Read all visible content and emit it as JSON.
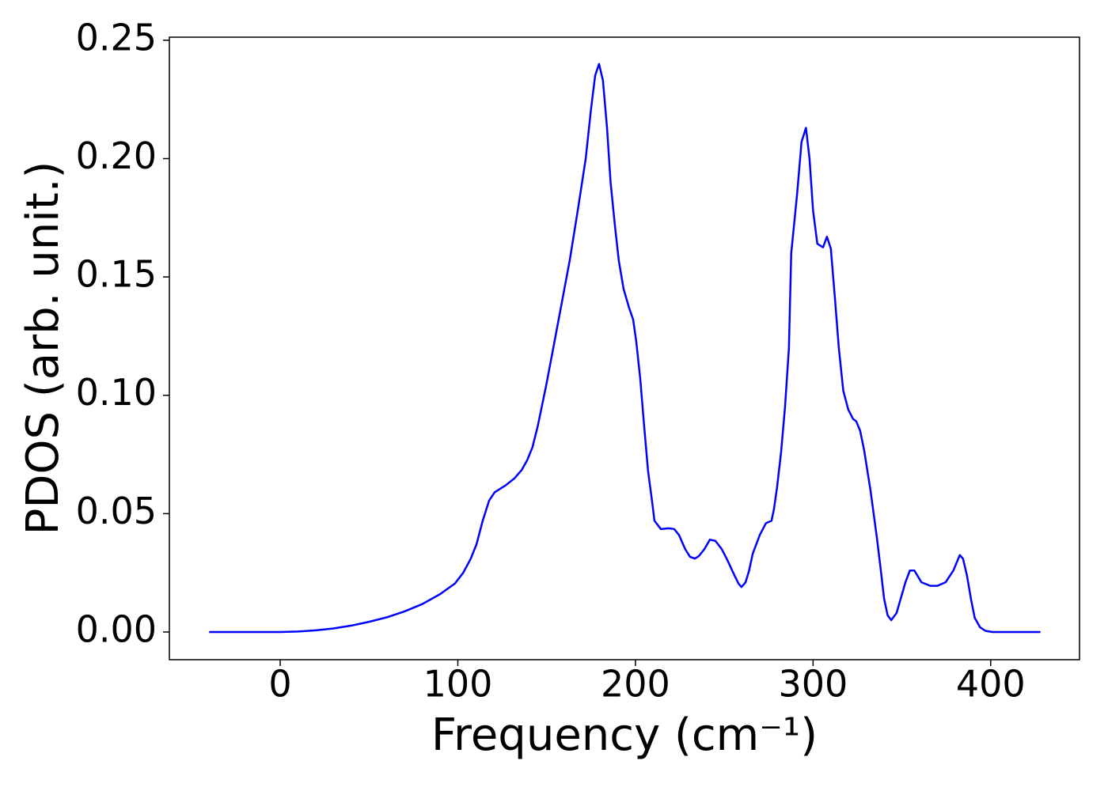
{
  "chart_data": {
    "type": "line",
    "xlabel": "Frequency (cm⁻¹)",
    "ylabel": "PDOS (arb. unit.)",
    "xlim": [
      -62.4,
      450
    ],
    "ylim": [
      -0.0117,
      0.2513
    ],
    "xticks": [
      0,
      100,
      200,
      300,
      400
    ],
    "yticks": [
      {
        "value": 0,
        "label": "0.00"
      },
      {
        "value": 0.05,
        "label": "0.05"
      },
      {
        "value": 0.1,
        "label": "0.10"
      },
      {
        "value": 0.15,
        "label": "0.15"
      },
      {
        "value": 0.2,
        "label": "0.20"
      },
      {
        "value": 0.25,
        "label": "0.25"
      }
    ],
    "grid": false,
    "series": [
      {
        "color": "#0000ff",
        "x": [
          -40,
          0,
          10,
          20,
          30,
          40,
          50,
          60,
          70,
          80,
          90,
          98.4,
          103,
          107.3,
          110.5,
          114,
          117.6,
          120.7,
          127,
          132,
          136,
          139,
          142,
          145,
          149.7,
          154,
          163,
          167.5,
          172,
          175,
          177.3,
          179.5,
          181.7,
          184,
          186,
          188.4,
          190.6,
          193.3,
          196.4,
          198.7,
          200.4,
          202.7,
          204.9,
          207.1,
          209.4,
          210.7,
          214.3,
          218.7,
          221.8,
          224.5,
          228,
          230.7,
          233.4,
          235.6,
          238.8,
          241.9,
          245,
          248.6,
          252,
          255.7,
          258,
          259.7,
          262,
          264,
          266,
          270,
          273.5,
          276.6,
          278,
          279.7,
          282,
          284.2,
          286.4,
          287.7,
          291,
          293.5,
          296,
          298,
          300,
          302.4,
          305.6,
          307.8,
          310,
          312.2,
          314.5,
          317,
          319.8,
          322.5,
          324.3,
          326.5,
          328.7,
          332.3,
          335.9,
          338,
          340,
          342,
          344,
          347,
          352,
          354.5,
          357,
          361,
          366,
          370,
          374.6,
          379,
          382.6,
          384.4,
          386.6,
          389,
          391,
          394,
          397,
          401,
          410,
          428
        ],
        "values": [
          0,
          0,
          0.0002,
          0.0007,
          0.0015,
          0.0027,
          0.0043,
          0.0062,
          0.0087,
          0.0118,
          0.016,
          0.0205,
          0.025,
          0.031,
          0.037,
          0.047,
          0.0555,
          0.059,
          0.062,
          0.065,
          0.0685,
          0.0725,
          0.078,
          0.087,
          0.104,
          0.121,
          0.157,
          0.178,
          0.2,
          0.221,
          0.235,
          0.24,
          0.233,
          0.213,
          0.19,
          0.172,
          0.157,
          0.145,
          0.137,
          0.132,
          0.123,
          0.107,
          0.087,
          0.068,
          0.055,
          0.047,
          0.0435,
          0.0438,
          0.0435,
          0.041,
          0.035,
          0.0318,
          0.031,
          0.032,
          0.035,
          0.039,
          0.0385,
          0.035,
          0.03,
          0.024,
          0.0205,
          0.019,
          0.021,
          0.026,
          0.033,
          0.041,
          0.046,
          0.047,
          0.052,
          0.061,
          0.076,
          0.095,
          0.12,
          0.16,
          0.185,
          0.207,
          0.213,
          0.2,
          0.178,
          0.164,
          0.1625,
          0.167,
          0.162,
          0.142,
          0.12,
          0.102,
          0.094,
          0.09,
          0.089,
          0.085,
          0.077,
          0.06,
          0.04,
          0.027,
          0.014,
          0.007,
          0.005,
          0.008,
          0.021,
          0.026,
          0.026,
          0.021,
          0.0195,
          0.0195,
          0.021,
          0.026,
          0.0325,
          0.031,
          0.024,
          0.0135,
          0.006,
          0.002,
          0.0005,
          0,
          0,
          0
        ]
      }
    ]
  }
}
